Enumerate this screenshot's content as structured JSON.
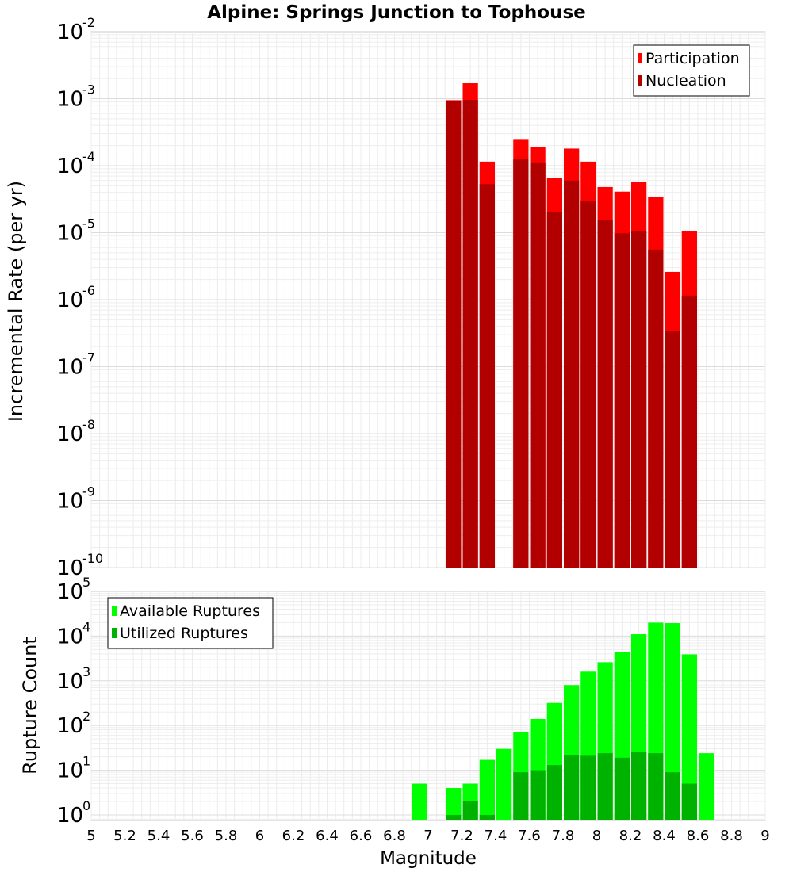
{
  "figure": {
    "title": "Alpine: Springs Junction to Tophouse",
    "xlabel": "Magnitude",
    "x_ticks": [
      "5",
      "5.2",
      "5.4",
      "5.6",
      "5.8",
      "6",
      "6.2",
      "6.4",
      "6.6",
      "6.8",
      "7",
      "7.2",
      "7.4",
      "7.6",
      "7.8",
      "8",
      "8.2",
      "8.4",
      "8.6",
      "8.8",
      "9"
    ]
  },
  "chart_data": [
    {
      "type": "bar",
      "title": "Alpine: Springs Junction to Tophouse",
      "xlabel": "",
      "ylabel": "Incremental Rate (per yr)",
      "y_scale": "log",
      "xlim": [
        5,
        9
      ],
      "ylim": [
        1e-10,
        0.01
      ],
      "bin_width": 0.1,
      "grid": true,
      "legend_position": "top-right",
      "x": [
        7.15,
        7.25,
        7.35,
        7.55,
        7.65,
        7.75,
        7.85,
        7.95,
        8.05,
        8.15,
        8.25,
        8.35,
        8.45,
        8.55
      ],
      "series": [
        {
          "name": "Participation",
          "color": "#ff0000",
          "values": [
            0.00095,
            0.0017,
            0.000115,
            0.00025,
            0.00019,
            6.5e-05,
            0.00018,
            0.000115,
            4.8e-05,
            4.1e-05,
            5.8e-05,
            3.4e-05,
            2.6e-06,
            1.05e-05
          ]
        },
        {
          "name": "Nucleation",
          "color": "#b20000",
          "values": [
            0.00092,
            0.00096,
            5.3e-05,
            0.000128,
            0.000112,
            2e-05,
            6e-05,
            3e-05,
            1.55e-05,
            9.8e-06,
            1.05e-05,
            5.6e-06,
            3.4e-07,
            1.15e-06
          ]
        }
      ],
      "y_ticks": [
        {
          "base": "10",
          "exp": "-10",
          "value": 1e-10
        },
        {
          "base": "10",
          "exp": "-9",
          "value": 1e-09
        },
        {
          "base": "10",
          "exp": "-8",
          "value": 1e-08
        },
        {
          "base": "10",
          "exp": "-7",
          "value": 1e-07
        },
        {
          "base": "10",
          "exp": "-6",
          "value": 1e-06
        },
        {
          "base": "10",
          "exp": "-5",
          "value": 1e-05
        },
        {
          "base": "10",
          "exp": "-4",
          "value": 0.0001
        },
        {
          "base": "10",
          "exp": "-3",
          "value": 0.001
        },
        {
          "base": "10",
          "exp": "-2",
          "value": 0.01
        }
      ]
    },
    {
      "type": "bar",
      "title": "",
      "xlabel": "Magnitude",
      "ylabel": "Rupture Count",
      "y_scale": "log",
      "xlim": [
        5,
        9
      ],
      "ylim": [
        0.75,
        100000
      ],
      "bin_width": 0.1,
      "grid": true,
      "legend_position": "top-left",
      "x": [
        6.95,
        7.15,
        7.25,
        7.35,
        7.45,
        7.55,
        7.65,
        7.75,
        7.85,
        7.95,
        8.05,
        8.15,
        8.25,
        8.35,
        8.45,
        8.55,
        8.65
      ],
      "series": [
        {
          "name": "Available Ruptures",
          "color": "#00ff00",
          "values": [
            5,
            4,
            5,
            17,
            30,
            70,
            140,
            320,
            800,
            1600,
            2600,
            4400,
            11000,
            20000,
            19500,
            3900,
            24
          ]
        },
        {
          "name": "Utilized Ruptures",
          "color": "#00b200",
          "values": [
            0,
            1,
            2,
            1,
            0,
            9,
            10,
            13,
            22,
            21,
            24,
            19,
            26,
            24,
            9,
            5,
            0
          ]
        }
      ],
      "y_ticks": [
        {
          "base": "10",
          "exp": "0",
          "value": 1
        },
        {
          "base": "10",
          "exp": "1",
          "value": 10
        },
        {
          "base": "10",
          "exp": "2",
          "value": 100
        },
        {
          "base": "10",
          "exp": "3",
          "value": 1000
        },
        {
          "base": "10",
          "exp": "4",
          "value": 10000
        },
        {
          "base": "10",
          "exp": "5",
          "value": 100000
        }
      ]
    }
  ]
}
